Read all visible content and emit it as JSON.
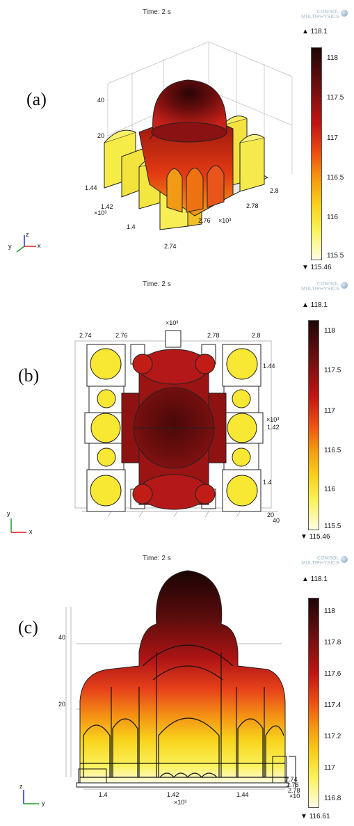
{
  "panels": [
    {
      "label": "(a)",
      "time": "Time: 2 s",
      "logo": [
        "COMSOL",
        "MULTIPHYSICS"
      ],
      "max": "▲ 118.1",
      "min": "▼ 115.46",
      "colorbar_ticks": [
        "118",
        "117.5",
        "117",
        "116.5",
        "116",
        "115.5"
      ],
      "axis_labels": [
        "40",
        "20",
        "1.44",
        "1.42",
        "×10³",
        "1.4",
        "2.74",
        "2.76",
        "×10³",
        "2.78",
        "2.8"
      ],
      "triad": {
        "x": "x",
        "y": "y",
        "z": "z"
      }
    },
    {
      "label": "(b)",
      "time": "Time: 2 s",
      "logo": [
        "COMSOL",
        "MULTIPHYSICS"
      ],
      "max": "▲ 118.1",
      "min": "▼ 115.46",
      "colorbar_ticks": [
        "118",
        "117.5",
        "117",
        "116.5",
        "116",
        "115.5"
      ],
      "axis_labels": [
        "2.74",
        "2.76",
        "×10³",
        "2.78",
        "2.8",
        "1.44",
        "×10³",
        "1.42",
        "1.4",
        "20",
        "40"
      ],
      "triad": {
        "x": "x",
        "y": "y"
      }
    },
    {
      "label": "(c)",
      "time": "Time: 2 s",
      "logo": [
        "COMSOL",
        "MULTIPHYSICS"
      ],
      "max": "▲ 118.1",
      "min": "▼ 116.61",
      "colorbar_ticks": [
        "118",
        "117.8",
        "117.6",
        "117.4",
        "117.2",
        "117",
        "116.8"
      ],
      "axis_labels": [
        "40",
        "20",
        "1.4",
        "1.42",
        "×10³",
        "1.44",
        "2.74",
        "2.76",
        "2.78",
        "×10"
      ],
      "triad": {
        "y": "y",
        "z": "z"
      }
    }
  ]
}
